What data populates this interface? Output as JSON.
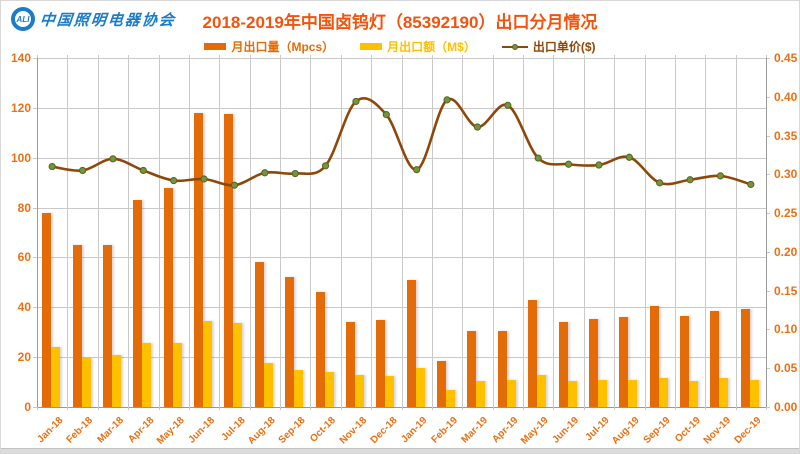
{
  "header": {
    "logo_badge": "ALI",
    "logo_text": "中国照明电器协会",
    "title": "2018-2019年中国卤钨灯（85392190）出口分月情况"
  },
  "chart_data": {
    "type": "combo bar+line",
    "title": "2018-2019年中国卤钨灯（85392190）出口分月情况",
    "categories": [
      "Jan-18",
      "Feb-18",
      "Mar-18",
      "Apr-18",
      "May-18",
      "Jun-18",
      "Jul-18",
      "Aug-18",
      "Sep-18",
      "Oct-18",
      "Nov-18",
      "Dec-18",
      "Jan-19",
      "Feb-19",
      "Mar-19",
      "Apr-19",
      "May-19",
      "Jun-19",
      "Jul-19",
      "Aug-19",
      "Sep-19",
      "Oct-19",
      "Nov-19",
      "Dec-19"
    ],
    "series": [
      {
        "name": "月出口量（Mpcs）",
        "type": "bar",
        "axis": "left",
        "color": "#e36c09",
        "values": [
          78,
          65,
          65,
          83,
          88,
          118,
          117.5,
          58,
          52,
          46,
          34,
          35,
          51,
          18.5,
          30.5,
          30.5,
          43,
          34,
          35.5,
          36,
          40.5,
          36.5,
          38.5,
          39.5
        ]
      },
      {
        "name": "月出口额（M$）",
        "type": "bar",
        "axis": "left",
        "color": "#ffc000",
        "values": [
          24,
          19.5,
          21,
          25.5,
          25.5,
          34.5,
          33.5,
          17.5,
          15,
          14,
          13,
          12.5,
          15.5,
          7,
          10.5,
          11,
          13,
          10.5,
          11,
          11,
          11.5,
          10.5,
          11.5,
          11
        ]
      },
      {
        "name": "出口单价($)",
        "type": "line",
        "axis": "right",
        "color": "#8f4708",
        "marker_color": "#77933c",
        "marker_border": "#55631f",
        "values": [
          0.31,
          0.305,
          0.32,
          0.305,
          0.292,
          0.294,
          0.286,
          0.302,
          0.301,
          0.311,
          0.394,
          0.377,
          0.306,
          0.396,
          0.361,
          0.389,
          0.321,
          0.313,
          0.312,
          0.322,
          0.289,
          0.293,
          0.298,
          0.287
        ]
      }
    ],
    "left_axis": {
      "min": 0,
      "max": 140,
      "step": 20,
      "tick_labels": [
        "0",
        "20",
        "40",
        "60",
        "80",
        "100",
        "120",
        "140"
      ],
      "label_color": "#ec7014"
    },
    "right_axis": {
      "min": 0,
      "max": 0.45,
      "step": 0.05,
      "tick_labels": [
        "0.00",
        "0.05",
        "0.10",
        "0.15",
        "0.20",
        "0.25",
        "0.30",
        "0.35",
        "0.40",
        "0.45"
      ],
      "label_color": "#ec7014"
    },
    "x_axis": {
      "label_color": "#ec7014"
    },
    "grid": true,
    "legend_position": "top",
    "plot_background": "#ffffff"
  }
}
